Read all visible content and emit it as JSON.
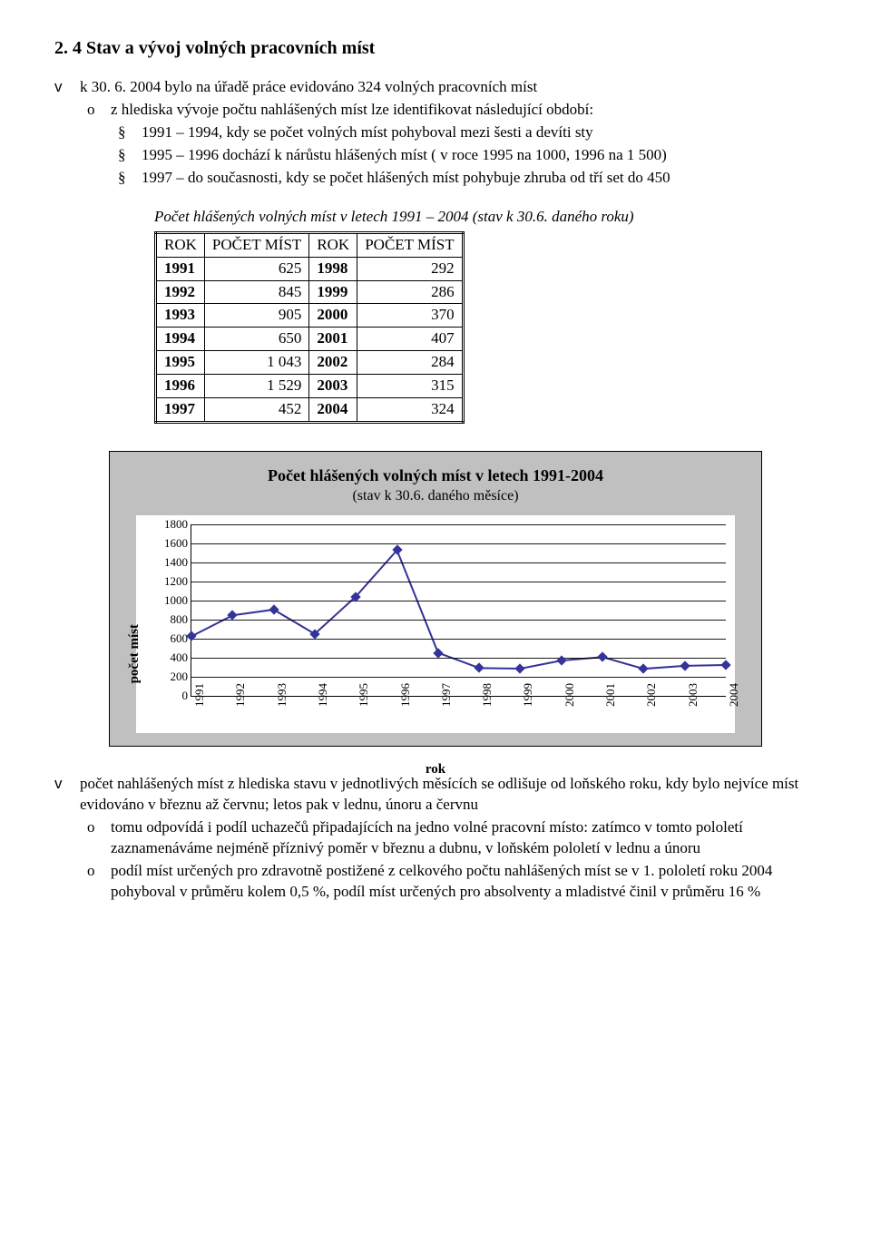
{
  "heading": "2. 4   Stav a vývoj volných pracovních míst",
  "bul_v1": "k 30. 6. 2004 bylo na úřadě práce evidováno 324 volných pracovních míst",
  "bul_o1": "z hlediska vývoje počtu nahlášených míst lze identifikovat následující období:",
  "bul_s1": "1991 – 1994, kdy se počet volných míst pohyboval mezi šesti a devíti sty",
  "bul_s2": "1995 – 1996 dochází k nárůstu hlášených míst ( v roce 1995 na 1000, 1996 na 1 500)",
  "bul_s3": "1997 – do současnosti, kdy se počet hlášených míst pohybuje zhruba od tří set do 450",
  "table_caption": "Počet hlášených volných míst v letech 1991 – 2004 (stav k 30.6. daného roku)",
  "th1": "ROK",
  "th2": "POČET MÍST",
  "th3": "ROK",
  "th4": "POČET MÍST",
  "rows": [
    {
      "y1": "1991",
      "v1": "625",
      "y2": "1998",
      "v2": "292"
    },
    {
      "y1": "1992",
      "v1": "845",
      "y2": "1999",
      "v2": "286"
    },
    {
      "y1": "1993",
      "v1": "905",
      "y2": "2000",
      "v2": "370"
    },
    {
      "y1": "1994",
      "v1": "650",
      "y2": "2001",
      "v2": "407"
    },
    {
      "y1": "1995",
      "v1": "1 043",
      "y2": "2002",
      "v2": "284"
    },
    {
      "y1": "1996",
      "v1": "1 529",
      "y2": "2003",
      "v2": "315"
    },
    {
      "y1": "1997",
      "v1": "452",
      "y2": "2004",
      "v2": "324"
    }
  ],
  "chart": {
    "title": "Počet hlášených volných míst v letech 1991-2004",
    "subtitle": "(stav k 30.6. daného měsíce)",
    "ylabel": "počet míst",
    "xlabel": "rok",
    "ymax": 1800,
    "ystep": 200,
    "line_color": "#333399",
    "bg_color": "#c0c0c0",
    "x": [
      "1991",
      "1992",
      "1993",
      "1994",
      "1995",
      "1996",
      "1997",
      "1998",
      "1999",
      "2000",
      "2001",
      "2002",
      "2003",
      "2004"
    ],
    "y": [
      625,
      845,
      905,
      650,
      1043,
      1529,
      452,
      292,
      286,
      370,
      407,
      284,
      315,
      324
    ]
  },
  "bul_v2": "počet nahlášených míst z hlediska stavu v jednotlivých měsících se odlišuje od loňského roku, kdy bylo nejvíce míst evidováno v březnu až červnu; letos pak v lednu, únoru a červnu",
  "bul_o2": "tomu odpovídá i podíl uchazečů připadajících na jedno volné pracovní místo: zatímco v tomto pololetí zaznamenáváme nejméně příznivý poměr v březnu a dubnu, v loňském pololetí v lednu a únoru",
  "bul_o3": "podíl míst určených pro zdravotně postižené z celkového počtu nahlášených míst se v 1. pololetí roku 2004 pohyboval v průměru kolem 0,5 %, podíl míst určených pro absolventy a mladistvé činil v průměru 16 %"
}
